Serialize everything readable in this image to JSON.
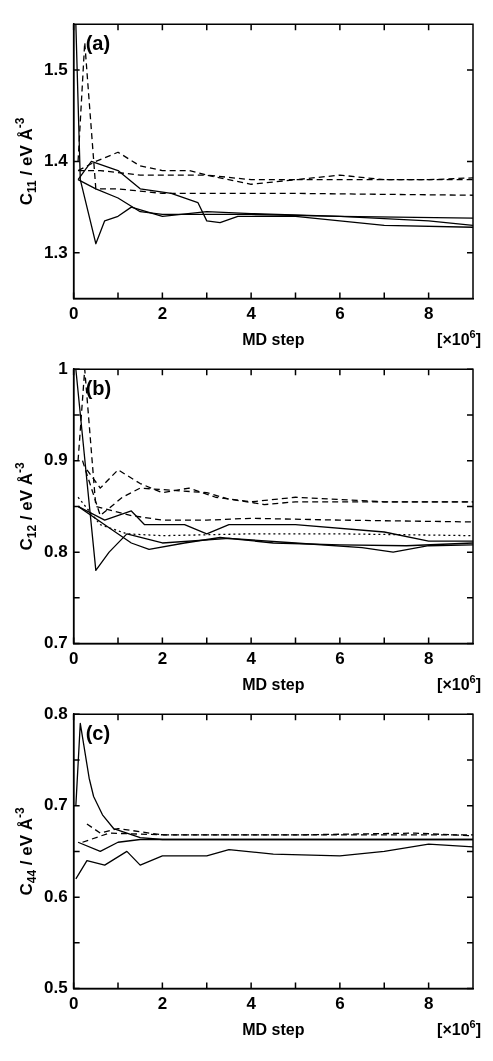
{
  "chart_data": [
    {
      "type": "line",
      "xlabel": "MD step",
      "ylabel": "C$_{11}$ / eV Å$^{-3}$",
      "annotations": [
        "(a)",
        "[×10$^{6}$]"
      ],
      "xlim": [
        0,
        9
      ],
      "ylim": [
        1.25,
        1.55
      ],
      "xticks": [
        0,
        {
          "value": 1,
          "label": null
        },
        2,
        {
          "value": 3,
          "label": null
        },
        4,
        {
          "value": 5,
          "label": null
        },
        6,
        {
          "value": 7,
          "label": null
        },
        8
      ],
      "yticks": [
        1.3,
        1.4,
        1.5
      ],
      "grid": false,
      "legend": false,
      "marker": "none",
      "series": [
        {
          "color": "#000000",
          "line_style": "dashed",
          "x": [
            0.1,
            0.5,
            1.0,
            1.5,
            2,
            2.6,
            3,
            4,
            5,
            6,
            7,
            8,
            9
          ],
          "values": [
            1.39,
            1.4,
            1.41,
            1.395,
            1.39,
            1.39,
            1.385,
            1.38,
            1.38,
            1.385,
            1.38,
            1.38,
            1.382
          ]
        },
        {
          "color": "#000000",
          "line_style": "dashed",
          "x": [
            0.1,
            0.6,
            1.5,
            3,
            4,
            5,
            6,
            7,
            8,
            9
          ],
          "values": [
            1.39,
            1.39,
            1.385,
            1.385,
            1.375,
            1.38,
            1.38,
            1.38,
            1.38,
            1.38
          ]
        },
        {
          "color": "#000000",
          "line_style": "dashed",
          "x": [
            0.1,
            0.25,
            0.5,
            1,
            2,
            3,
            5,
            7,
            9
          ],
          "values": [
            1.4,
            1.53,
            1.37,
            1.37,
            1.365,
            1.365,
            1.365,
            1.364,
            1.363
          ]
        },
        {
          "color": "#000000",
          "line_style": "solid",
          "x": [
            0.1,
            0.5,
            1,
            1.5,
            2,
            3,
            4,
            6,
            9
          ],
          "values": [
            1.38,
            1.37,
            1.36,
            1.345,
            1.342,
            1.342,
            1.342,
            1.34,
            1.338
          ]
        },
        {
          "color": "#000000",
          "line_style": "solid",
          "x": [
            0.05,
            0.15,
            0.5,
            0.7,
            1.0,
            1.3,
            2,
            3,
            4,
            6,
            8,
            9
          ],
          "values": [
            1.55,
            1.38,
            1.31,
            1.335,
            1.34,
            1.35,
            1.34,
            1.345,
            1.343,
            1.34,
            1.335,
            1.33
          ]
        },
        {
          "color": "#000000",
          "line_style": "solid",
          "x": [
            0.1,
            0.4,
            1,
            1.5,
            2.2,
            2.8,
            3.0,
            3.3,
            3.7,
            5,
            6,
            7,
            9
          ],
          "values": [
            1.38,
            1.4,
            1.39,
            1.37,
            1.365,
            1.355,
            1.335,
            1.333,
            1.34,
            1.34,
            1.335,
            1.33,
            1.328
          ]
        }
      ]
    },
    {
      "type": "line",
      "xlabel": "MD step",
      "ylabel": "C$_{12}$ / eV Å$^{-3}$",
      "annotations": [
        "(b)",
        "[×10$^{6}$]"
      ],
      "xlim": [
        0,
        9
      ],
      "ylim": [
        0.7,
        1.0
      ],
      "xticks": [
        0,
        {
          "value": 1,
          "label": null
        },
        2,
        {
          "value": 3,
          "label": null
        },
        4,
        {
          "value": 5,
          "label": null
        },
        6,
        {
          "value": 7,
          "label": null
        },
        8
      ],
      "yticks": [
        0.7,
        {
          "value": 0.75,
          "label": null
        },
        0.8,
        {
          "value": 0.85,
          "label": null
        },
        0.9,
        {
          "value": 0.95,
          "label": null
        },
        1
      ],
      "grid": false,
      "legend": false,
      "marker": "none",
      "series": [
        {
          "color": "#000000",
          "line_style": "dashed",
          "x": [
            0.3,
            0.6,
            1.0,
            1.5,
            2,
            2.6,
            3.2,
            4,
            5,
            7,
            9
          ],
          "values": [
            0.89,
            0.87,
            0.89,
            0.875,
            0.865,
            0.87,
            0.86,
            0.855,
            0.86,
            0.855,
            0.855
          ]
        },
        {
          "color": "#000000",
          "line_style": "dashed",
          "x": [
            0.2,
            0.6,
            1.1,
            1.5,
            3,
            3.5,
            4.3,
            5,
            7,
            9
          ],
          "values": [
            0.9,
            0.84,
            0.86,
            0.87,
            0.865,
            0.858,
            0.852,
            0.855,
            0.855,
            0.855
          ]
        },
        {
          "color": "#000000",
          "line_style": "dashed",
          "x": [
            0.1,
            0.25,
            0.5,
            1.3,
            2,
            3,
            4,
            6,
            9
          ],
          "values": [
            0.9,
            1.0,
            0.85,
            0.84,
            0.835,
            0.835,
            0.837,
            0.835,
            0.833
          ]
        },
        {
          "color": "#000000",
          "line_style": "dotted",
          "x": [
            0.1,
            0.6,
            1.2,
            2,
            4,
            6,
            9
          ],
          "values": [
            0.86,
            0.83,
            0.82,
            0.818,
            0.82,
            0.82,
            0.818
          ]
        },
        {
          "color": "#000000",
          "line_style": "solid",
          "x": [
            0.1,
            0.7,
            1.3,
            1.6,
            2.5,
            3,
            3.5,
            5,
            7,
            8,
            9
          ],
          "values": [
            0.85,
            0.835,
            0.845,
            0.83,
            0.83,
            0.82,
            0.83,
            0.83,
            0.822,
            0.812,
            0.812
          ]
        },
        {
          "color": "#000000",
          "line_style": "solid",
          "x": [
            0.1,
            0.7,
            1.3,
            1.7,
            2.5,
            3.3,
            4.5,
            6,
            7.5,
            9
          ],
          "values": [
            0.85,
            0.83,
            0.81,
            0.803,
            0.81,
            0.816,
            0.81,
            0.808,
            0.807,
            0.81
          ]
        },
        {
          "color": "#000000",
          "line_style": "solid",
          "x": [
            0.05,
            0.5,
            0.8,
            1.2,
            2,
            3.5,
            5,
            6.5,
            7.2,
            8,
            9
          ],
          "values": [
            1.0,
            0.78,
            0.8,
            0.82,
            0.81,
            0.815,
            0.81,
            0.805,
            0.8,
            0.807,
            0.808
          ]
        }
      ]
    },
    {
      "type": "line",
      "xlabel": "MD step",
      "ylabel": "C$_{44}$ / eV Å$^{-3}$",
      "annotations": [
        "(c)",
        "[×10$^{6}$]"
      ],
      "xlim": [
        0,
        9
      ],
      "ylim": [
        0.5,
        0.8
      ],
      "xticks": [
        0,
        {
          "value": 1,
          "label": null
        },
        2,
        {
          "value": 3,
          "label": null
        },
        4,
        {
          "value": 5,
          "label": null
        },
        6,
        {
          "value": 7,
          "label": null
        },
        8
      ],
      "yticks": [
        0.5,
        {
          "value": 0.55,
          "label": null
        },
        0.6,
        {
          "value": 0.65,
          "label": null
        },
        0.7,
        {
          "value": 0.75,
          "label": null
        },
        0.8
      ],
      "grid": false,
      "legend": false,
      "marker": "none",
      "series": [
        {
          "color": "#000000",
          "line_style": "solid",
          "x": [
            0.05,
            0.15,
            0.35,
            0.45,
            0.65,
            0.9,
            1.5,
            2,
            9
          ],
          "values": [
            0.7,
            0.79,
            0.73,
            0.71,
            0.69,
            0.675,
            0.665,
            0.663,
            0.663
          ]
        },
        {
          "color": "#000000",
          "line_style": "solid",
          "x": [
            0.1,
            0.6,
            1.0,
            1.5,
            9
          ],
          "values": [
            0.66,
            0.65,
            0.66,
            0.663,
            0.663
          ]
        },
        {
          "color": "#000000",
          "line_style": "dashed",
          "x": [
            0.3,
            0.6,
            1,
            2,
            5,
            7.7,
            9
          ],
          "values": [
            0.68,
            0.67,
            0.675,
            0.668,
            0.668,
            0.67,
            0.667
          ]
        },
        {
          "color": "#000000",
          "line_style": "solid",
          "x": [
            0.05,
            0.3,
            0.7,
            1.2,
            1.5,
            2,
            3,
            3.5,
            4.5,
            6,
            7,
            8,
            9
          ],
          "values": [
            0.62,
            0.64,
            0.635,
            0.65,
            0.635,
            0.645,
            0.645,
            0.652,
            0.647,
            0.645,
            0.65,
            0.658,
            0.655
          ]
        },
        {
          "color": "#000000",
          "line_style": "dashed",
          "x": [
            0.2,
            0.8,
            2.1,
            6.5,
            9
          ],
          "values": [
            0.66,
            0.67,
            0.668,
            0.668,
            0.668
          ]
        }
      ]
    }
  ]
}
